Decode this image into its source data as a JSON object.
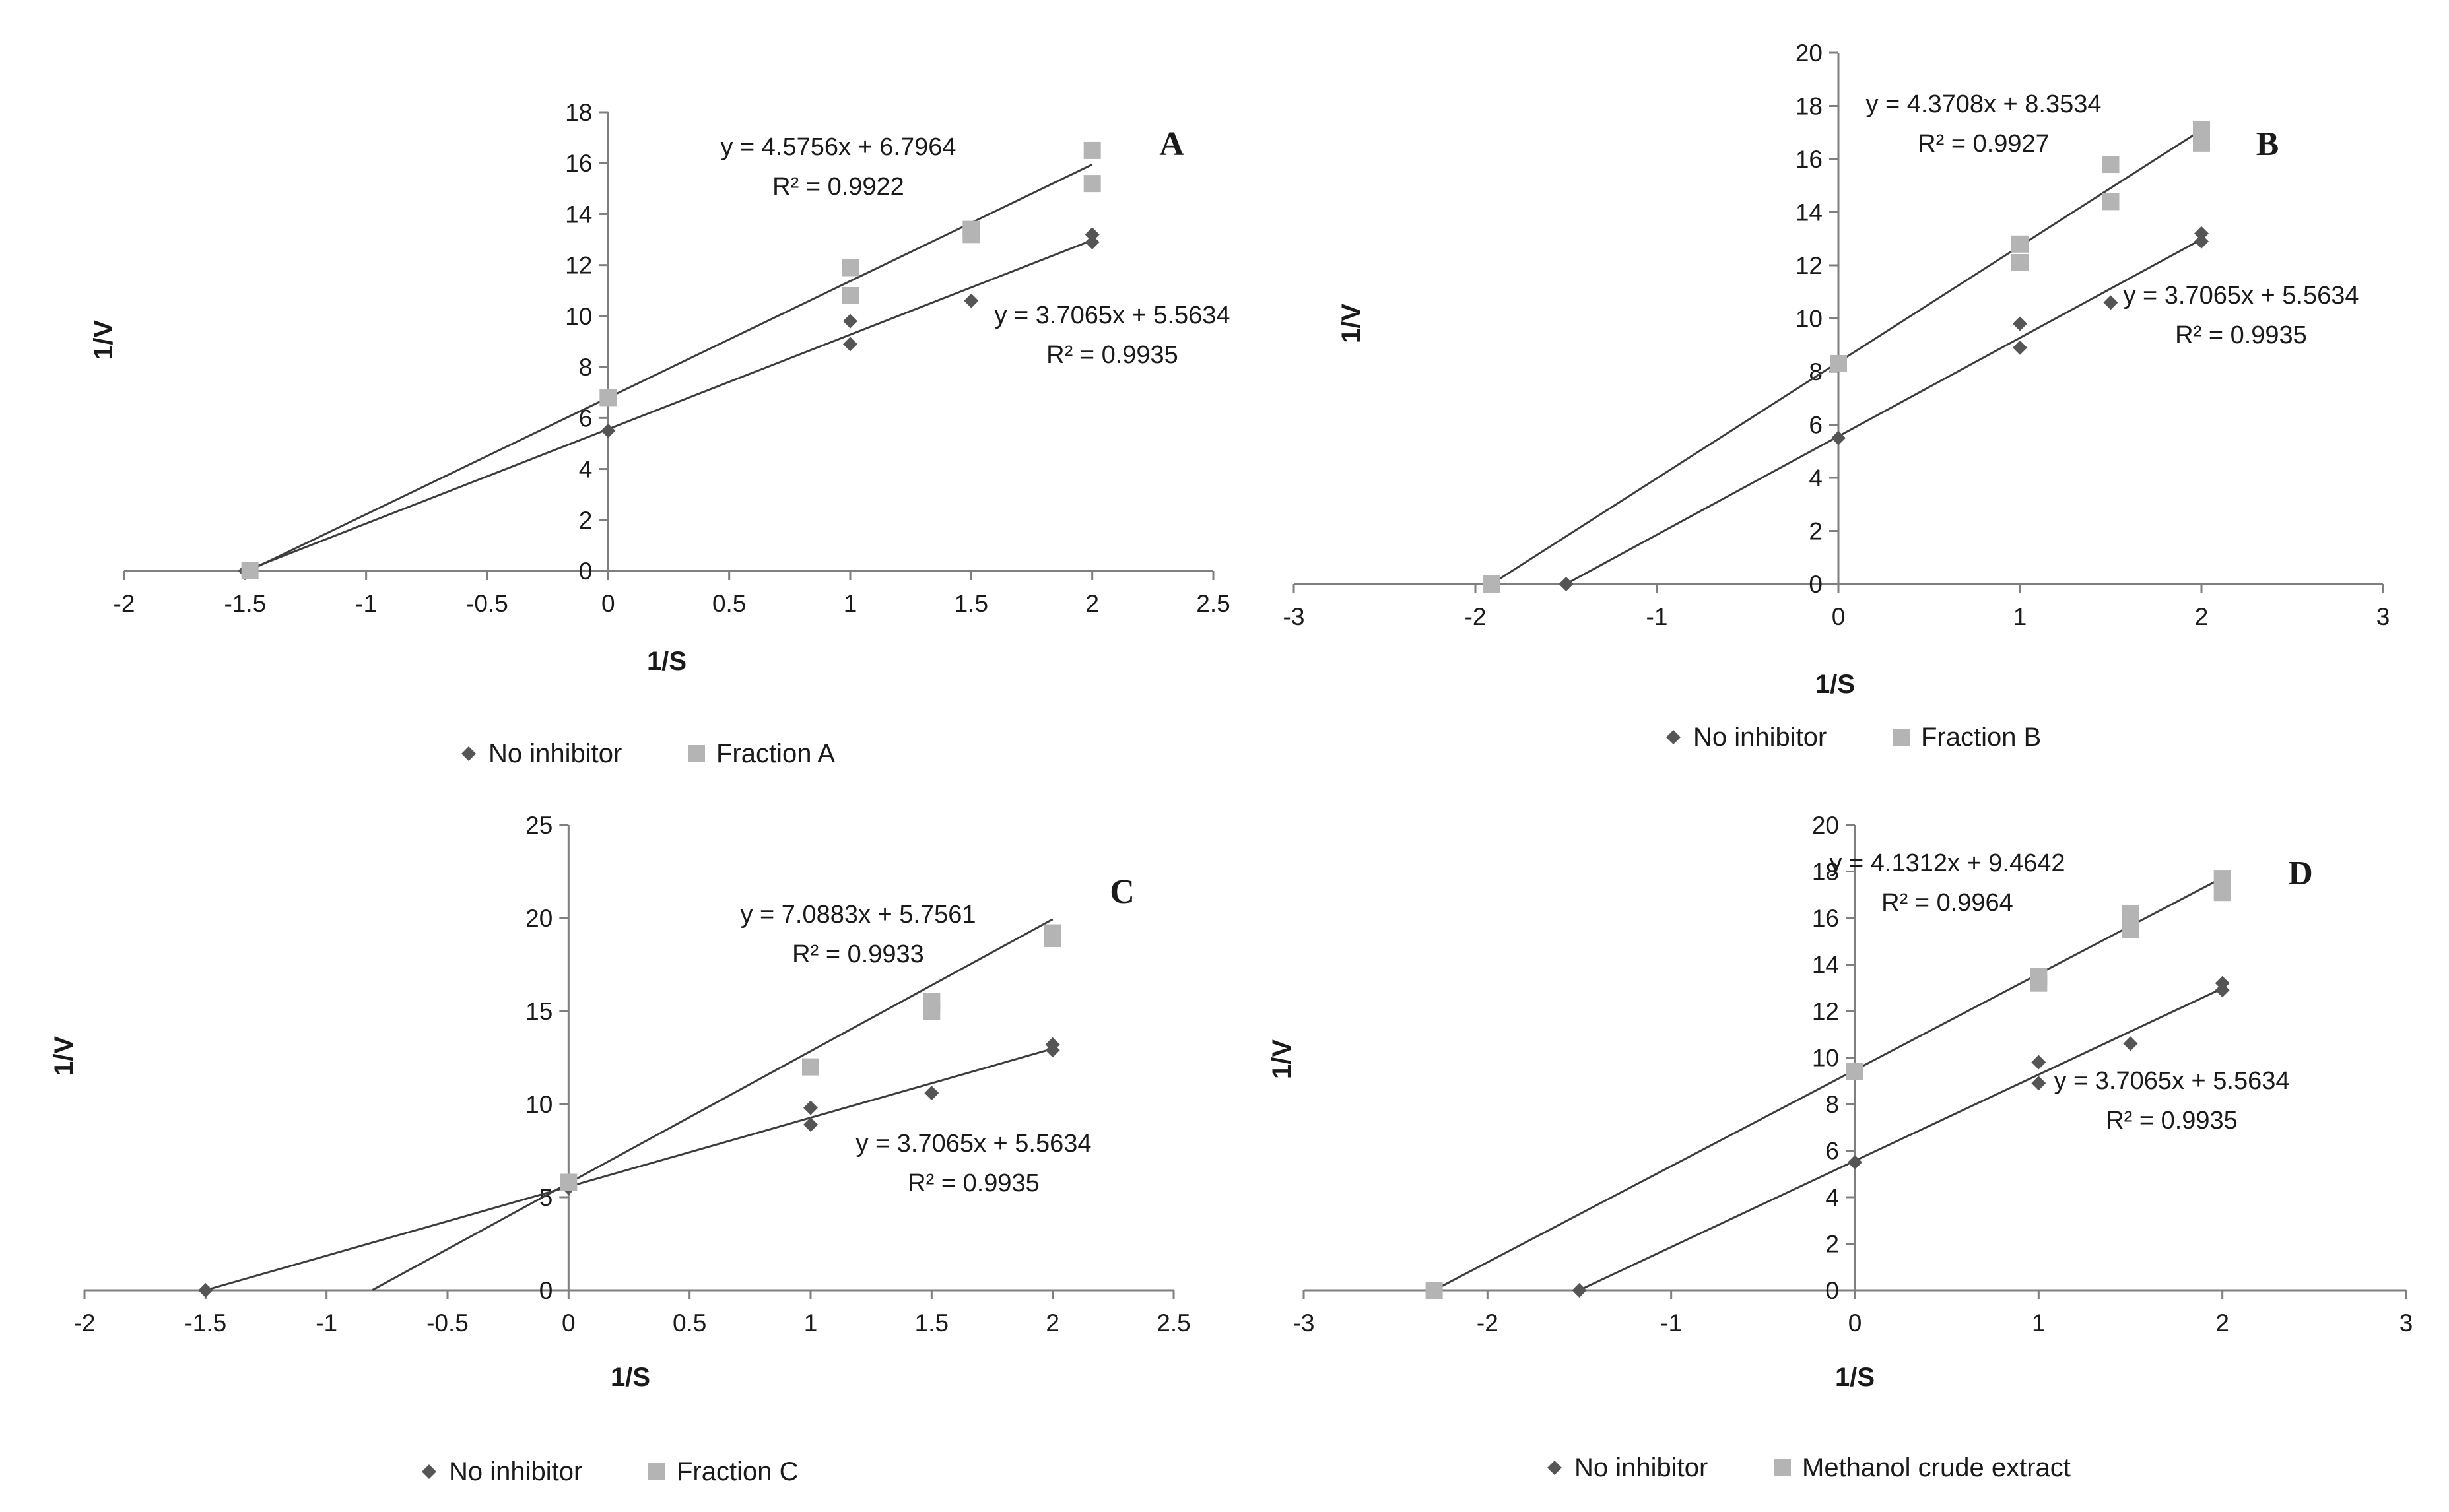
{
  "chart_data": [
    {
      "type": "scatter",
      "panel_label": "A",
      "xlabel": "1/S",
      "ylabel": "1/V",
      "xlim": [
        -2,
        2.5
      ],
      "ylim": [
        0,
        18
      ],
      "xticks": [
        "-2",
        "-1.5",
        "-1",
        "-0.5",
        "0",
        "0.5",
        "1",
        "1.5",
        "2",
        "2.5"
      ],
      "xtick_values": [
        -2,
        -1.5,
        -1,
        -0.5,
        0,
        0.5,
        1,
        1.5,
        2,
        2.5
      ],
      "yticks": [
        "0",
        "2",
        "4",
        "6",
        "8",
        "10",
        "12",
        "14",
        "16",
        "18"
      ],
      "ytick_values": [
        0,
        2,
        4,
        6,
        8,
        10,
        12,
        14,
        16,
        18
      ],
      "series": [
        {
          "name": "No inhibitor",
          "marker": "diamond",
          "color": "#555555",
          "points": [
            [
              -1.5,
              0
            ],
            [
              0,
              5.5
            ],
            [
              1,
              8.9
            ],
            [
              1,
              9.8
            ],
            [
              1.5,
              10.6
            ],
            [
              2,
              12.9
            ],
            [
              2,
              13.2
            ]
          ],
          "trendline": {
            "slope": 3.7065,
            "intercept": 5.5634,
            "x_from": -1.5,
            "x_to": 2
          },
          "equation": "y = 3.7065x + 5.5634",
          "r2": "R² = 0.9935"
        },
        {
          "name": "Fraction A",
          "marker": "square",
          "color": "#b4b4b4",
          "points": [
            [
              -1.48,
              0
            ],
            [
              0,
              6.8
            ],
            [
              1,
              10.8
            ],
            [
              1,
              11.9
            ],
            [
              1.5,
              13.2
            ],
            [
              1.5,
              13.4
            ],
            [
              2,
              15.2
            ],
            [
              2,
              16.5
            ]
          ],
          "trendline": {
            "slope": 4.5756,
            "intercept": 6.7964,
            "x_from": -1.49,
            "x_to": 2
          },
          "equation": "y = 4.5756x + 6.7964",
          "r2": "R² = 0.9922"
        }
      ]
    },
    {
      "type": "scatter",
      "panel_label": "B",
      "xlabel": "1/S",
      "ylabel": "1/V",
      "xlim": [
        -3,
        3
      ],
      "ylim": [
        0,
        20
      ],
      "xticks": [
        "-3",
        "-2",
        "-1",
        "0",
        "1",
        "2",
        "3"
      ],
      "xtick_values": [
        -3,
        -2,
        -1,
        0,
        1,
        2,
        3
      ],
      "yticks": [
        "0",
        "2",
        "4",
        "6",
        "8",
        "10",
        "12",
        "14",
        "16",
        "18",
        "20"
      ],
      "ytick_values": [
        0,
        2,
        4,
        6,
        8,
        10,
        12,
        14,
        16,
        18,
        20
      ],
      "series": [
        {
          "name": "No inhibitor",
          "marker": "diamond",
          "color": "#555555",
          "points": [
            [
              -1.5,
              0
            ],
            [
              0,
              5.5
            ],
            [
              1,
              8.9
            ],
            [
              1,
              9.8
            ],
            [
              1.5,
              10.6
            ],
            [
              2,
              12.9
            ],
            [
              2,
              13.2
            ]
          ],
          "trendline": {
            "slope": 3.7065,
            "intercept": 5.5634,
            "x_from": -1.5,
            "x_to": 2
          },
          "equation": "y = 3.7065x + 5.5634",
          "r2": "R² = 0.9935"
        },
        {
          "name": "Fraction B",
          "marker": "square",
          "color": "#b4b4b4",
          "points": [
            [
              -1.91,
              0
            ],
            [
              0,
              8.3
            ],
            [
              1,
              12.1
            ],
            [
              1,
              12.8
            ],
            [
              1.5,
              14.4
            ],
            [
              1.5,
              15.8
            ],
            [
              2,
              16.6
            ],
            [
              2,
              17.1
            ]
          ],
          "trendline": {
            "slope": 4.3708,
            "intercept": 8.3534,
            "x_from": -1.91,
            "x_to": 2
          },
          "equation": "y = 4.3708x + 8.3534",
          "r2": "R² = 0.9927"
        }
      ]
    },
    {
      "type": "scatter",
      "panel_label": "C",
      "xlabel": "1/S",
      "ylabel": "1/V",
      "xlim": [
        -2,
        2.5
      ],
      "ylim": [
        0,
        25
      ],
      "xticks": [
        "-2",
        "-1.5",
        "-1",
        "-0.5",
        "0",
        "0.5",
        "1",
        "1.5",
        "2",
        "2.5"
      ],
      "xtick_values": [
        -2,
        -1.5,
        -1,
        -0.5,
        0,
        0.5,
        1,
        1.5,
        2,
        2.5
      ],
      "yticks": [
        "0",
        "5",
        "10",
        "15",
        "20",
        "25"
      ],
      "ytick_values": [
        0,
        5,
        10,
        15,
        20,
        25
      ],
      "series": [
        {
          "name": "No inhibitor",
          "marker": "diamond",
          "color": "#555555",
          "points": [
            [
              -1.5,
              0
            ],
            [
              0,
              5.5
            ],
            [
              1,
              8.9
            ],
            [
              1,
              9.8
            ],
            [
              1.5,
              10.6
            ],
            [
              2,
              12.9
            ],
            [
              2,
              13.2
            ]
          ],
          "trendline": {
            "slope": 3.7065,
            "intercept": 5.5634,
            "x_from": -1.5,
            "x_to": 2
          },
          "equation": "y = 3.7065x + 5.5634",
          "r2": "R² = 0.9935"
        },
        {
          "name": "Fraction C",
          "marker": "square",
          "color": "#b4b4b4",
          "points": [
            [
              0,
              5.8
            ],
            [
              1,
              12
            ],
            [
              1.5,
              15
            ],
            [
              1.5,
              15.5
            ],
            [
              2,
              18.9
            ],
            [
              2,
              19.2
            ]
          ],
          "trendline": {
            "slope": 7.0883,
            "intercept": 5.7561,
            "x_from": -0.81,
            "x_to": 2
          },
          "equation": "y = 7.0883x + 5.7561",
          "r2": "R² = 0.9933"
        }
      ]
    },
    {
      "type": "scatter",
      "panel_label": "D",
      "xlabel": "1/S",
      "ylabel": "1/V",
      "xlim": [
        -3,
        3
      ],
      "ylim": [
        0,
        20
      ],
      "xticks": [
        "-3",
        "-2",
        "-1",
        "0",
        "1",
        "2",
        "3"
      ],
      "xtick_values": [
        -3,
        -2,
        -1,
        0,
        1,
        2,
        3
      ],
      "yticks": [
        "0",
        "2",
        "4",
        "6",
        "8",
        "10",
        "12",
        "14",
        "16",
        "18",
        "20"
      ],
      "ytick_values": [
        0,
        2,
        4,
        6,
        8,
        10,
        12,
        14,
        16,
        18,
        20
      ],
      "series": [
        {
          "name": "No inhibitor",
          "marker": "diamond",
          "color": "#555555",
          "points": [
            [
              -1.5,
              0
            ],
            [
              0,
              5.5
            ],
            [
              1,
              8.9
            ],
            [
              1,
              9.8
            ],
            [
              1.5,
              10.6
            ],
            [
              2,
              12.9
            ],
            [
              2,
              13.2
            ]
          ],
          "trendline": {
            "slope": 3.7065,
            "intercept": 5.5634,
            "x_from": -1.5,
            "x_to": 2
          },
          "equation": "y = 3.7065x + 5.5634",
          "r2": "R² = 0.9935"
        },
        {
          "name": "Methanol crude extract",
          "marker": "square",
          "color": "#b4b4b4",
          "points": [
            [
              -2.29,
              0
            ],
            [
              0,
              9.4
            ],
            [
              1,
              13.2
            ],
            [
              1,
              13.5
            ],
            [
              1.5,
              15.5
            ],
            [
              1.5,
              16.2
            ],
            [
              2,
              17.1
            ],
            [
              2,
              17.7
            ]
          ],
          "trendline": {
            "slope": 4.1312,
            "intercept": 9.4642,
            "x_from": -2.29,
            "x_to": 2
          },
          "equation": "y = 4.1312x + 9.4642",
          "r2": "R² = 0.9964"
        }
      ]
    }
  ]
}
